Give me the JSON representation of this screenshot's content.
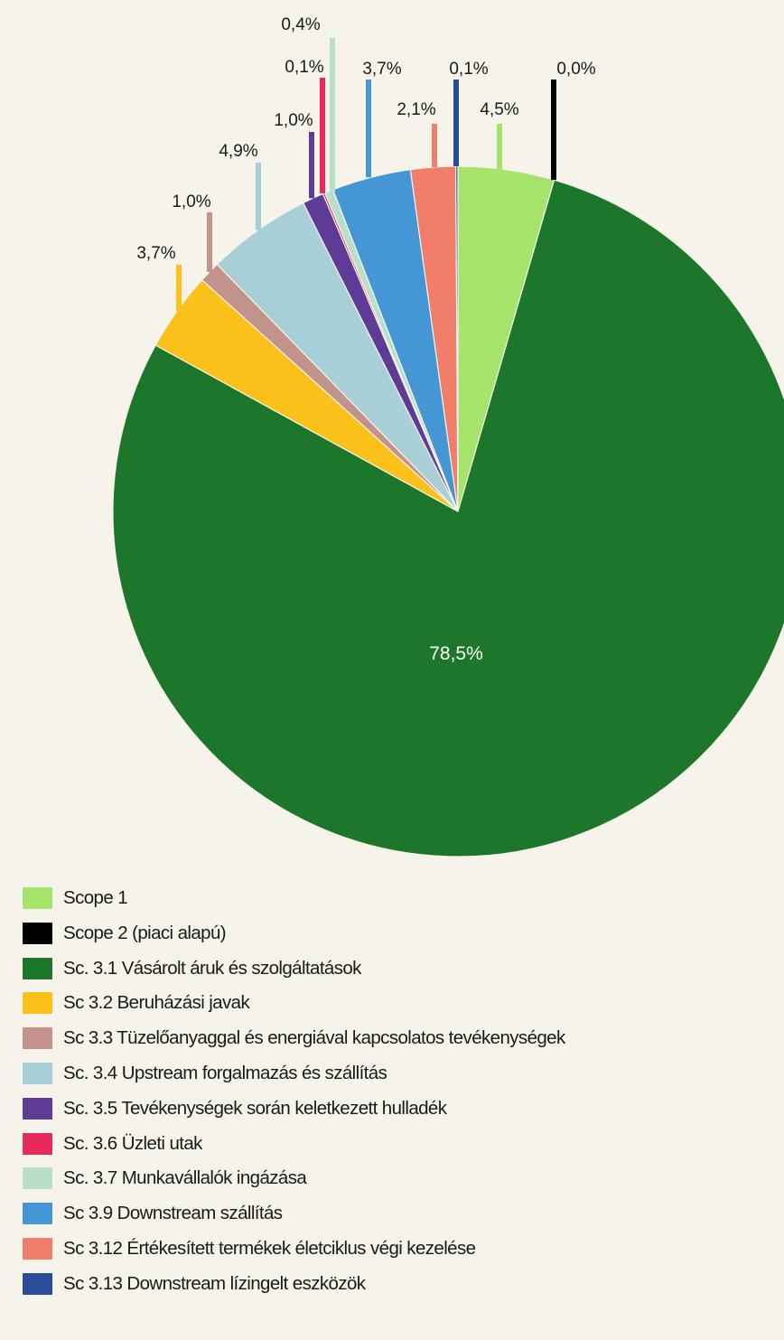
{
  "chart_data": {
    "type": "pie",
    "title": "",
    "slices": [
      {
        "label": "Scope 1",
        "value": 4.5,
        "value_label": "4,5%",
        "color": "#a6e36a"
      },
      {
        "label": "Scope 2 (piaci alapú)",
        "value": 0.0,
        "value_label": "0,0%",
        "color": "#000000"
      },
      {
        "label": "Sc. 3.1 Vásárolt áruk és szolgáltatások",
        "value": 78.5,
        "value_label": "78,5%",
        "color": "#1c772b"
      },
      {
        "label": "Sc 3.2 Beruházási javak",
        "value": 3.7,
        "value_label": "3,7%",
        "color": "#fcc01a"
      },
      {
        "label": "Sc 3.3 Tüzelőanyaggal és energiával kapcsolatos tevékenységek",
        "value": 1.0,
        "value_label": "1,0%",
        "color": "#c1938a"
      },
      {
        "label": "Sc. 3.4 Upstream forgalmazás és szállítás",
        "value": 4.9,
        "value_label": "4,9%",
        "color": "#a8ced8"
      },
      {
        "label": "Sc. 3.5 Tevékenységek során keletkezett hulladék",
        "value": 1.0,
        "value_label": "1,0%",
        "color": "#5e3b94"
      },
      {
        "label": "Sc. 3.6 Üzleti utak",
        "value": 0.1,
        "value_label": "0,1%",
        "color": "#e62b5b"
      },
      {
        "label": "Sc. 3.7 Munkavállalók ingázása",
        "value": 0.4,
        "value_label": "0,4%",
        "color": "#b9dfcb"
      },
      {
        "label": "Sc 3.9 Downstream szállítás",
        "value": 3.7,
        "value_label": "3,7%",
        "color": "#4496d4"
      },
      {
        "label": "Sc 3.12 Értékesített termékek életciklus végi kezelése",
        "value": 2.1,
        "value_label": "2,1%",
        "color": "#f07e6a"
      },
      {
        "label": "Sc 3.13 Downstream lízingelt eszközök",
        "value": 0.1,
        "value_label": "0,1%",
        "color": "#2a4d9a"
      }
    ],
    "legend_position": "bottom-left"
  }
}
